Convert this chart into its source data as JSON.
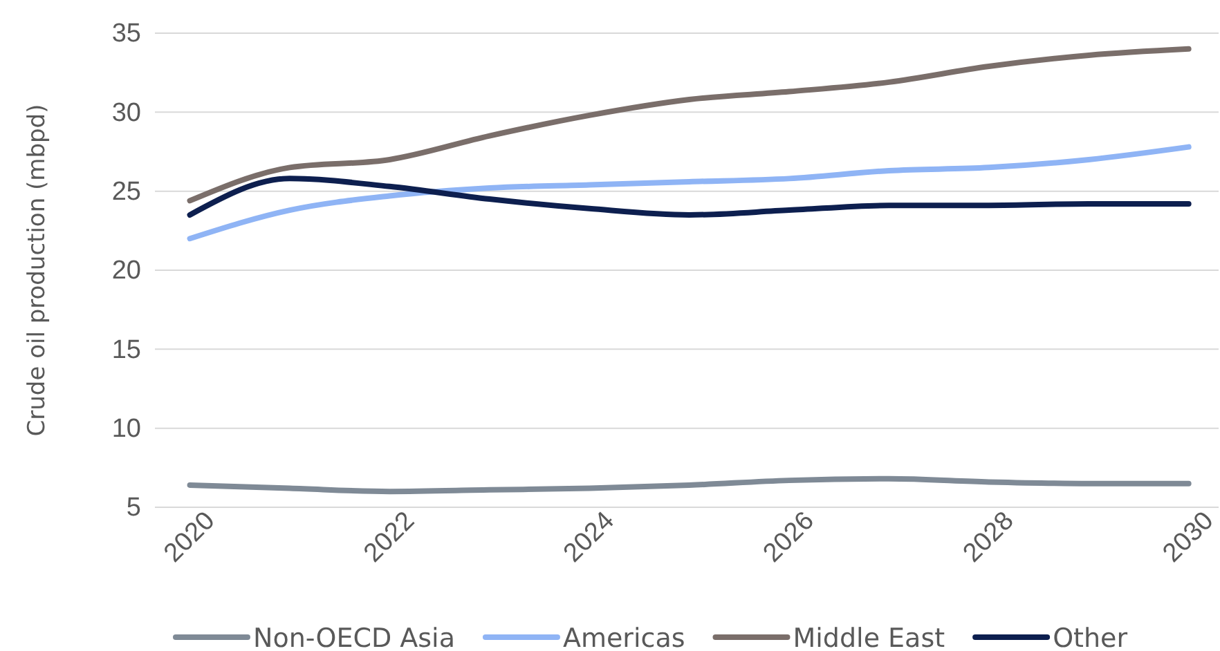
{
  "chart_data": {
    "type": "line",
    "ylabel": "Crude oil production (mbpd)",
    "x": [
      2020,
      2021,
      2022,
      2023,
      2024,
      2025,
      2026,
      2027,
      2028,
      2029,
      2030
    ],
    "xlim": [
      2019.65,
      2030.3
    ],
    "xticks": [
      2020,
      2022,
      2024,
      2026,
      2028,
      2030
    ],
    "ylim": [
      5,
      35
    ],
    "yticks": [
      5,
      10,
      15,
      20,
      25,
      30,
      35
    ],
    "grid": "y",
    "legend": "bottom",
    "marker": "none",
    "line_style": "solid",
    "series": [
      {
        "name": "Non-OECD Asia",
        "color": "#7f8a96",
        "values": [
          6.4,
          6.2,
          6.0,
          6.1,
          6.2,
          6.4,
          6.7,
          6.8,
          6.6,
          6.5,
          6.5
        ]
      },
      {
        "name": "Americas",
        "color": "#8fb4f5",
        "values": [
          22.0,
          23.8,
          24.7,
          25.2,
          25.4,
          25.6,
          25.8,
          26.3,
          26.5,
          27.0,
          27.8
        ]
      },
      {
        "name": "Middle East",
        "color": "#7a6e6a",
        "values": [
          24.4,
          26.5,
          27.0,
          28.5,
          29.8,
          30.8,
          31.3,
          31.9,
          32.9,
          33.6,
          34.0
        ]
      },
      {
        "name": "Other",
        "color": "#0d1f4f",
        "values": [
          23.5,
          25.8,
          25.3,
          24.5,
          23.9,
          23.5,
          23.8,
          24.1,
          24.1,
          24.2,
          24.2
        ]
      }
    ]
  }
}
